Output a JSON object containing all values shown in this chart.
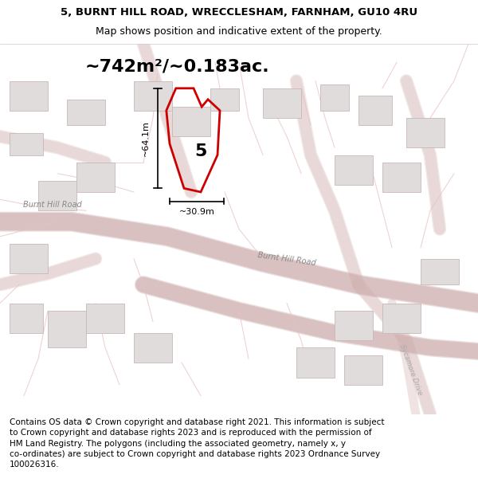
{
  "title_line1": "5, BURNT HILL ROAD, WRECCLESHAM, FARNHAM, GU10 4RU",
  "title_line2": "Map shows position and indicative extent of the property.",
  "area_text": "~742m²/~0.183ac.",
  "property_number": "5",
  "measure_v": "~64.1m",
  "measure_h": "~30.9m",
  "road_label1": "Burnt Hill Road",
  "road_label2": "Burnt Hill Road",
  "road_label3": "Sycamore Drive",
  "footer_text": "Contains OS data © Crown copyright and database right 2021. This information is subject to Crown copyright and database rights 2023 and is reproduced with the permission of HM Land Registry. The polygons (including the associated geometry, namely x, y co-ordinates) are subject to Crown copyright and database rights 2023 Ordnance Survey 100026316.",
  "bg_color": "#f5f5f5",
  "map_bg": "#f0eeee",
  "road_color": "#e8c8c8",
  "road_stroke": "#d4a0a0",
  "building_fill": "#e0dcdc",
  "building_stroke": "#c8b8b8",
  "property_color": "#cc0000",
  "text_color": "#333333",
  "title_fontsize": 9.5,
  "subtitle_fontsize": 9,
  "area_fontsize": 18,
  "footer_fontsize": 7.5
}
